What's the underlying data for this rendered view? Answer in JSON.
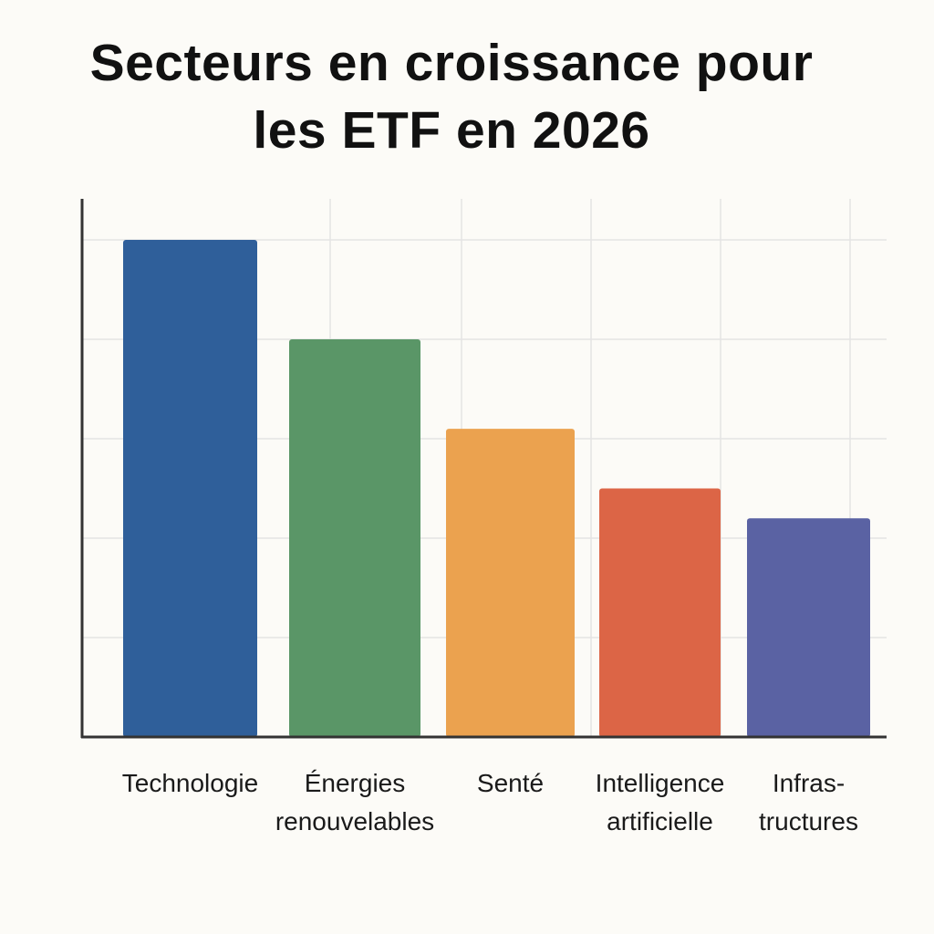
{
  "chart_data": {
    "type": "bar",
    "title_lines": [
      "Secteurs en croissance pour",
      "les ETF en 2026"
    ],
    "categories": [
      [
        "Technologie"
      ],
      [
        "Énergies",
        "renouvelables"
      ],
      [
        "Senté"
      ],
      [
        "Intelligence",
        "artificielle"
      ],
      [
        "Infras-",
        "tructures"
      ]
    ],
    "values": [
      5.0,
      4.0,
      3.1,
      2.5,
      2.2
    ],
    "colors": [
      "#2f5f9a",
      "#5a9667",
      "#eba24f",
      "#dc6546",
      "#5a62a3"
    ],
    "ylim": [
      0,
      5.4
    ],
    "grid": true,
    "xlabel": "",
    "ylabel": ""
  }
}
